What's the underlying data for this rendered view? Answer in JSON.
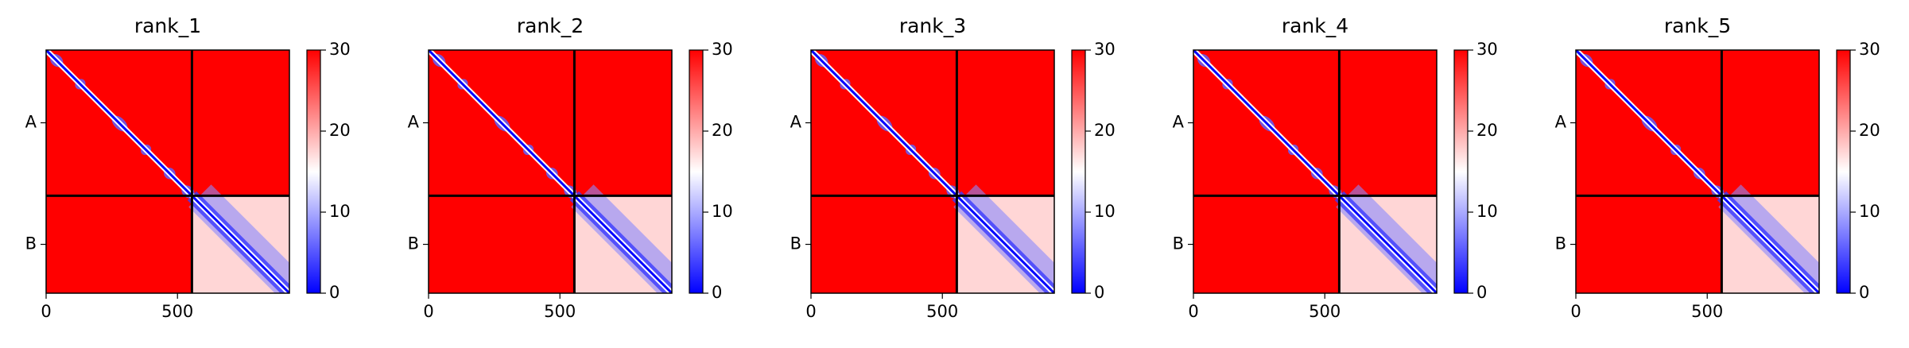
{
  "chart_data": [
    {
      "type": "heatmap",
      "title": "rank_1",
      "xlim": [
        0,
        926
      ],
      "xticks": [
        0,
        500
      ],
      "ylim": [
        926,
        0
      ],
      "yticks": [
        {
          "value": 277,
          "label": "A"
        },
        {
          "value": 740,
          "label": "B"
        }
      ],
      "chain_breaks": [
        555
      ],
      "clim": [
        0,
        30
      ],
      "cticks": [
        0,
        10,
        20,
        30
      ],
      "colormap": [
        "#0000ff",
        "#ffffff",
        "#ff0000"
      ]
    },
    {
      "type": "heatmap",
      "title": "rank_2",
      "xlim": [
        0,
        926
      ],
      "xticks": [
        0,
        500
      ],
      "ylim": [
        926,
        0
      ],
      "yticks": [
        {
          "value": 277,
          "label": "A"
        },
        {
          "value": 740,
          "label": "B"
        }
      ],
      "chain_breaks": [
        555
      ],
      "clim": [
        0,
        30
      ],
      "cticks": [
        0,
        10,
        20,
        30
      ],
      "colormap": [
        "#0000ff",
        "#ffffff",
        "#ff0000"
      ]
    },
    {
      "type": "heatmap",
      "title": "rank_3",
      "xlim": [
        0,
        926
      ],
      "xticks": [
        0,
        500
      ],
      "ylim": [
        926,
        0
      ],
      "yticks": [
        {
          "value": 277,
          "label": "A"
        },
        {
          "value": 740,
          "label": "B"
        }
      ],
      "chain_breaks": [
        555
      ],
      "clim": [
        0,
        30
      ],
      "cticks": [
        0,
        10,
        20,
        30
      ],
      "colormap": [
        "#0000ff",
        "#ffffff",
        "#ff0000"
      ]
    },
    {
      "type": "heatmap",
      "title": "rank_4",
      "xlim": [
        0,
        926
      ],
      "xticks": [
        0,
        500
      ],
      "ylim": [
        926,
        0
      ],
      "yticks": [
        {
          "value": 277,
          "label": "A"
        },
        {
          "value": 740,
          "label": "B"
        }
      ],
      "chain_breaks": [
        555
      ],
      "clim": [
        0,
        30
      ],
      "cticks": [
        0,
        10,
        20,
        30
      ],
      "colormap": [
        "#0000ff",
        "#ffffff",
        "#ff0000"
      ]
    },
    {
      "type": "heatmap",
      "title": "rank_5",
      "xlim": [
        0,
        926
      ],
      "xticks": [
        0,
        500
      ],
      "ylim": [
        926,
        0
      ],
      "yticks": [
        {
          "value": 277,
          "label": "A"
        },
        {
          "value": 740,
          "label": "B"
        }
      ],
      "chain_breaks": [
        555
      ],
      "clim": [
        0,
        30
      ],
      "cticks": [
        0,
        10,
        20,
        30
      ],
      "colormap": [
        "#0000ff",
        "#ffffff",
        "#ff0000"
      ]
    }
  ]
}
